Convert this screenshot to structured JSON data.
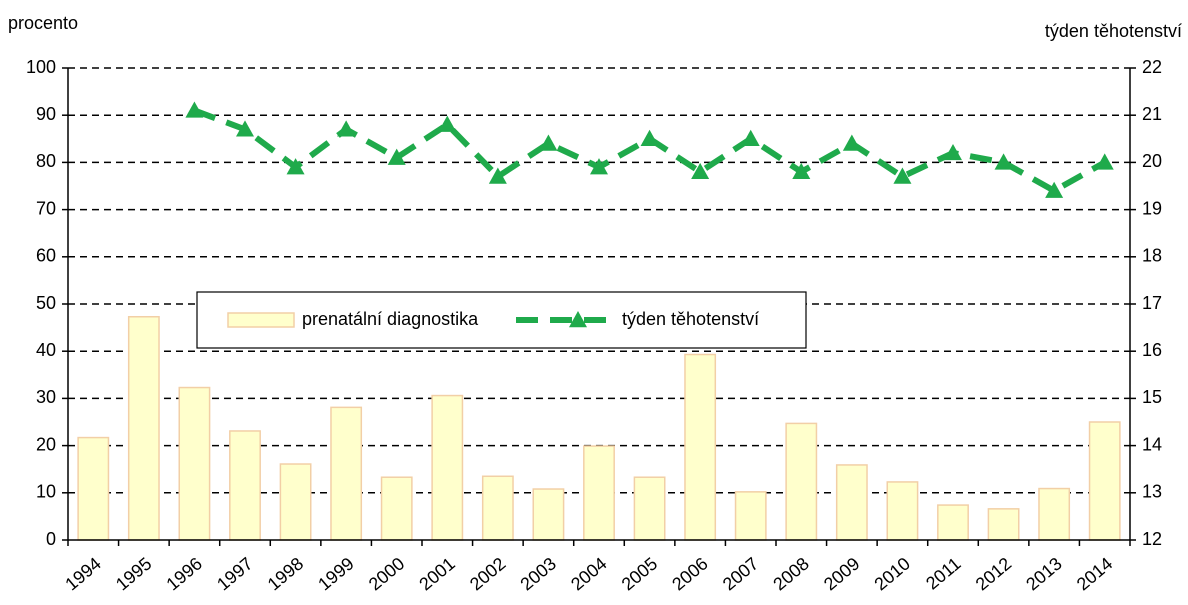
{
  "chart_data": {
    "type": "bar_line",
    "y_label": "procento",
    "y2_label": "týden těhotenství",
    "categories": [
      "1994",
      "1995",
      "1996",
      "1997",
      "1998",
      "1999",
      "2000",
      "2001",
      "2002",
      "2003",
      "2004",
      "2005",
      "2006",
      "2007",
      "2008",
      "2009",
      "2010",
      "2011",
      "2012",
      "2013",
      "2014"
    ],
    "series": [
      {
        "name": "prenatální diagnostika",
        "color": "#ffffcc",
        "values": [
          21.7,
          47.3,
          32.3,
          23.1,
          16.1,
          28.1,
          13.3,
          30.6,
          13.5,
          10.8,
          19.9,
          13.3,
          39.3,
          10.2,
          24.7,
          15.9,
          12.3,
          7.4,
          6.6,
          10.9,
          25.0
        ]
      },
      {
        "name": "týden těhotenství",
        "color": "#1faa4b",
        "axis": "y2",
        "values": [
          null,
          null,
          21.1,
          20.7,
          19.9,
          20.7,
          20.1,
          20.8,
          19.7,
          20.4,
          19.9,
          20.5,
          19.8,
          20.5,
          19.8,
          20.4,
          19.7,
          20.2,
          20.0,
          19.4,
          20.0
        ]
      }
    ],
    "ylim": [
      0,
      100
    ],
    "yticks": [
      0,
      10,
      20,
      30,
      40,
      50,
      60,
      70,
      80,
      90,
      100
    ],
    "y2lim": [
      12,
      22
    ],
    "y2ticks": [
      12,
      13,
      14,
      15,
      16,
      17,
      18,
      19,
      20,
      21,
      22
    ],
    "grid": true
  }
}
